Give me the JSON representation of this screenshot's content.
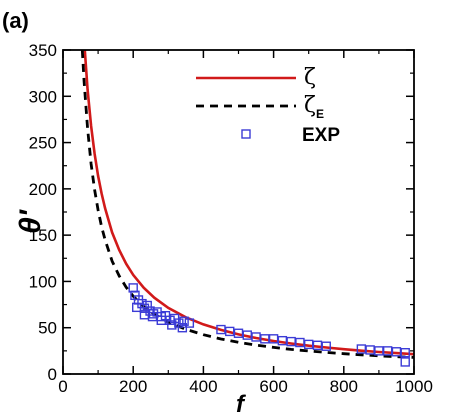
{
  "panel_label": "(a)",
  "colors": {
    "zeta": "#d11a1a",
    "zeta_e": "#000000",
    "exp": "#3b3bd6"
  },
  "chart_data": {
    "type": "line",
    "xlabel": "f",
    "ylabel": "θ'",
    "xlim": [
      0,
      1000
    ],
    "ylim": [
      0,
      350
    ],
    "x_ticks": [
      0,
      200,
      400,
      600,
      800,
      1000
    ],
    "y_ticks": [
      0,
      50,
      100,
      150,
      200,
      250,
      300,
      350
    ],
    "legend_position": "top-right",
    "series": [
      {
        "name": "ζ",
        "subscript": "",
        "style": "solid-line",
        "x": [
          62,
          70,
          80,
          90,
          100,
          110,
          120,
          140,
          160,
          180,
          200,
          230,
          260,
          300,
          350,
          400,
          450,
          500,
          550,
          600,
          650,
          700,
          750,
          800,
          850,
          900,
          950,
          1000
        ],
        "y": [
          350,
          307,
          268,
          238,
          214,
          195,
          179,
          153,
          134,
          119,
          107,
          93.2,
          82.4,
          71.4,
          61.2,
          53.6,
          47.6,
          42.8,
          38.9,
          35.7,
          33.0,
          30.6,
          28.6,
          26.8,
          25.2,
          23.8,
          22.6,
          21.4
        ]
      },
      {
        "name": "ζ",
        "subscript": "E",
        "style": "dashed-line",
        "x": [
          55,
          60,
          70,
          80,
          90,
          100,
          110,
          120,
          140,
          160,
          180,
          200,
          230,
          260,
          300,
          350,
          400,
          450,
          500,
          550,
          600,
          650,
          700,
          750,
          800,
          850,
          900,
          950,
          1000
        ],
        "y": [
          350,
          316,
          265,
          227,
          199,
          177,
          159,
          145,
          122,
          106,
          93.7,
          84.0,
          72.9,
          64.5,
          56.1,
          48.3,
          42.4,
          37.8,
          34.2,
          31.2,
          28.7,
          26.6,
          24.8,
          23.3,
          21.9,
          20.7,
          19.7,
          18.7,
          17.9
        ]
      },
      {
        "name": "EXP",
        "style": "open-square-markers",
        "x": [
          200,
          205,
          215,
          225,
          232,
          240,
          248,
          258,
          268,
          280,
          292,
          305,
          318,
          330,
          345,
          360,
          450,
          475,
          500,
          525,
          550,
          575,
          600,
          625,
          650,
          675,
          700,
          725,
          750,
          850,
          875,
          900,
          925,
          950,
          975,
          210,
          232,
          255,
          280,
          310,
          340,
          975
        ],
        "y": [
          93,
          85,
          80,
          76,
          71,
          74,
          68,
          65,
          67,
          62,
          63,
          58,
          60,
          55,
          57,
          55,
          48,
          46,
          44,
          42,
          40,
          38,
          38,
          36,
          35,
          34,
          32,
          31,
          30,
          27,
          26,
          25,
          25,
          24,
          23,
          72,
          64,
          62,
          58,
          53,
          50,
          13
        ]
      }
    ]
  }
}
